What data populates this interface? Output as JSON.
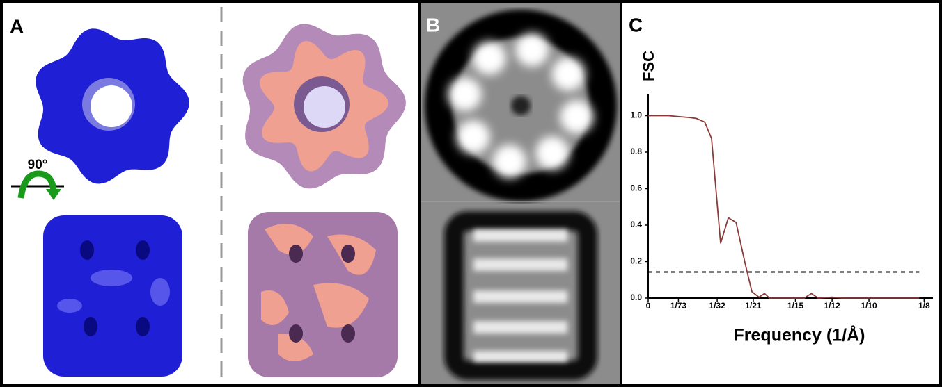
{
  "panels": {
    "a": {
      "label": "A",
      "rotation": "90°"
    },
    "b": {
      "label": "B"
    },
    "c": {
      "label": "C"
    }
  },
  "chart_data": {
    "type": "line",
    "ylabel": "FSC",
    "xlabel": "Frequency (1/Å)",
    "color": "#8b3a3a",
    "x": [
      0,
      0.0092,
      0.0186,
      0.0218,
      0.0256,
      0.0287,
      0.0328,
      0.0363,
      0.0398,
      0.0439,
      0.047,
      0.0502,
      0.0527,
      0.0549,
      0.0707,
      0.0739,
      0.077,
      0.0833,
      0.088,
      0.101,
      0.1228
    ],
    "values": [
      1.0,
      1.0,
      0.99,
      0.985,
      0.965,
      0.875,
      0.3,
      0.44,
      0.415,
      0.19,
      0.035,
      0.005,
      0.025,
      0,
      0,
      0.025,
      0,
      0.005,
      0,
      0,
      0
    ],
    "threshold": 0.143,
    "xlim": [
      0,
      0.129
    ],
    "ylim": [
      0,
      1.12
    ],
    "xticks": [
      0,
      {
        "value": 0.0137,
        "label": "1/73"
      },
      {
        "value": 0.03125,
        "label": "1/32"
      },
      {
        "value": 0.0476,
        "label": "1/21"
      },
      {
        "value": 0.0667,
        "label": "1/15"
      },
      {
        "value": 0.0833,
        "label": "1/12"
      },
      {
        "value": 0.1,
        "label": "1/10"
      },
      {
        "value": 0.125,
        "label": "1/8"
      }
    ],
    "yticks": [
      {
        "value": 0,
        "label": "0.0"
      },
      0.2,
      0.4,
      0.6,
      0.8,
      {
        "value": 1,
        "label": "1.0"
      }
    ]
  }
}
